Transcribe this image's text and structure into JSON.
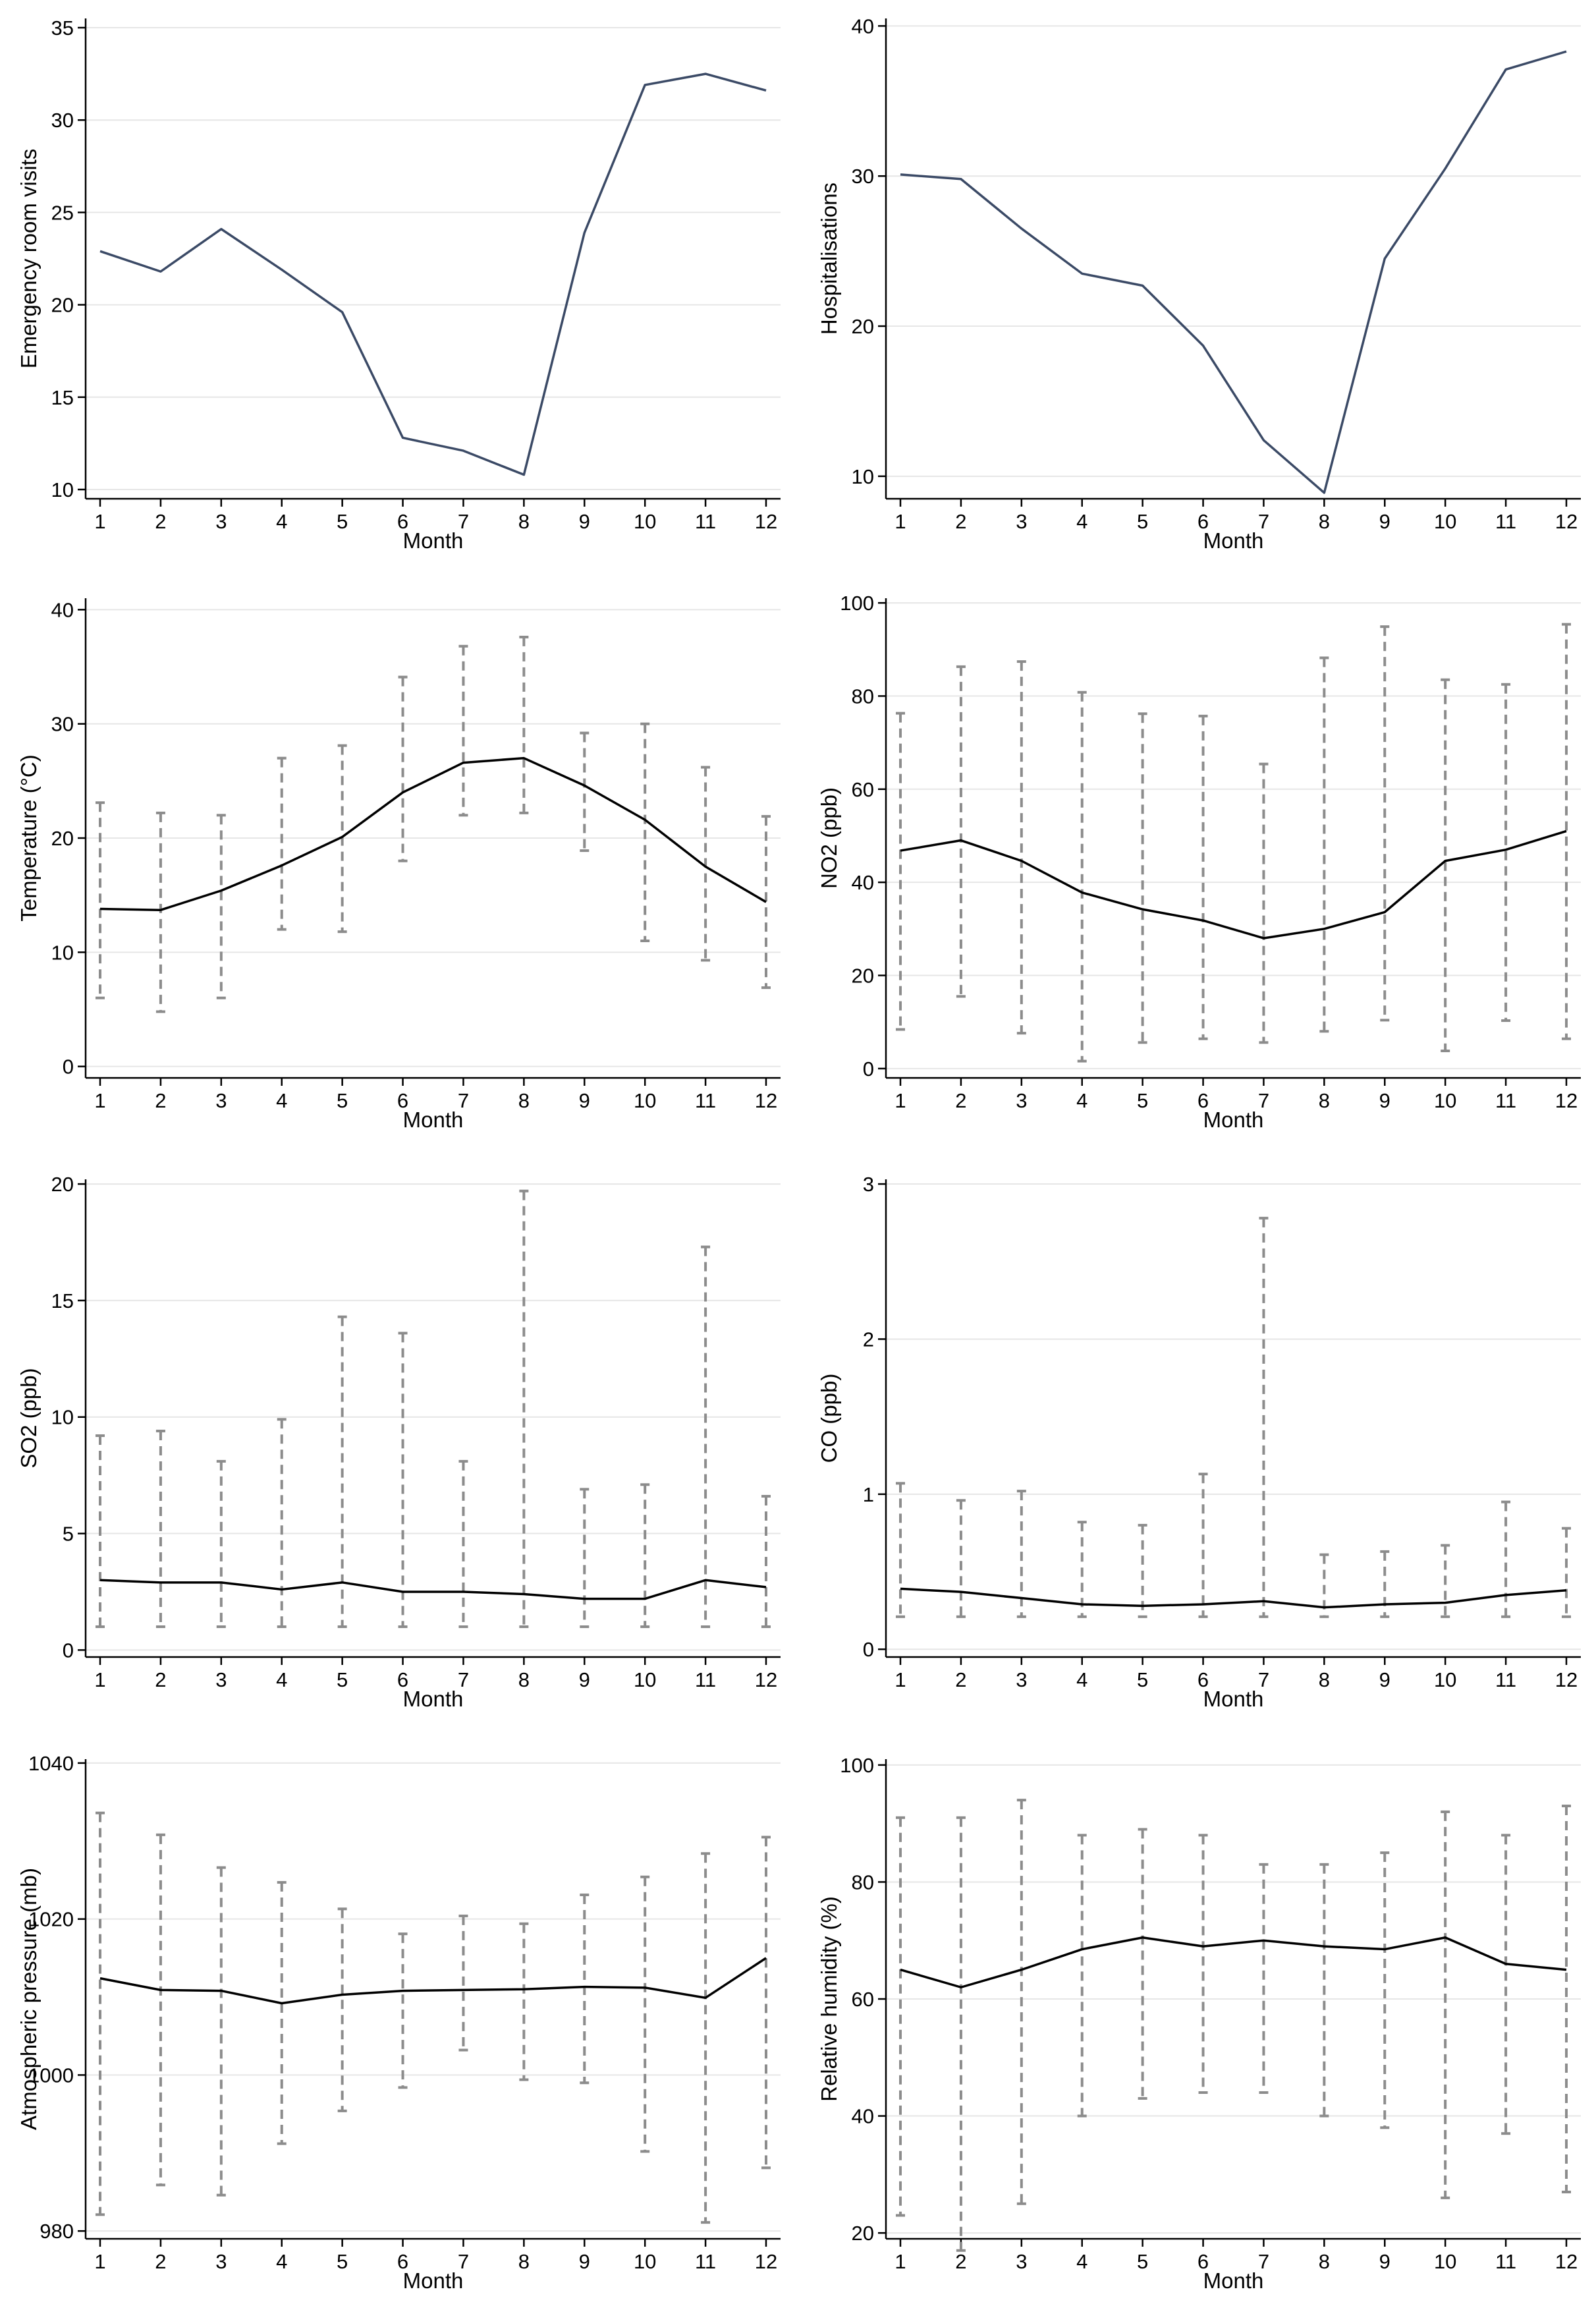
{
  "colors": {
    "visits_line": "#3b4a66",
    "mean_line": "#000000",
    "error_bar": "#8c8c8c",
    "grid": "#e6e6e6"
  },
  "chart_data": [
    {
      "id": "er-visits",
      "type": "line",
      "xlabel": "Month",
      "ylabel": "Emergency room visits",
      "x": [
        1,
        2,
        3,
        4,
        5,
        6,
        7,
        8,
        9,
        10,
        11,
        12
      ],
      "yticks": [
        10,
        15,
        20,
        25,
        30,
        35
      ],
      "ylim": [
        9.5,
        35.5
      ],
      "series": [
        {
          "values": [
            22.9,
            21.8,
            24.1,
            21.9,
            19.6,
            12.8,
            12.1,
            10.8,
            23.9,
            31.9,
            32.5,
            31.6
          ]
        }
      ],
      "grid": true
    },
    {
      "id": "hospitalisations",
      "type": "line",
      "xlabel": "Month",
      "ylabel": "Hospitalisations",
      "x": [
        1,
        2,
        3,
        4,
        5,
        6,
        7,
        8,
        9,
        10,
        11,
        12
      ],
      "yticks": [
        10,
        20,
        30,
        40
      ],
      "ylim": [
        8.5,
        40.5
      ],
      "series": [
        {
          "values": [
            30.1,
            29.8,
            26.5,
            23.5,
            22.7,
            18.7,
            12.4,
            8.9,
            24.5,
            30.5,
            37.1,
            38.3
          ]
        }
      ],
      "grid": true
    },
    {
      "id": "temperature",
      "type": "line",
      "xlabel": "Month",
      "ylabel": "Temperature (°C)",
      "x": [
        1,
        2,
        3,
        4,
        5,
        6,
        7,
        8,
        9,
        10,
        11,
        12
      ],
      "yticks": [
        0,
        10,
        20,
        30,
        40
      ],
      "ylim": [
        -1,
        41
      ],
      "series": [
        {
          "values": [
            13.8,
            13.7,
            15.4,
            17.6,
            20.1,
            24.0,
            26.6,
            27.0,
            24.6,
            21.6,
            17.5,
            14.4
          ],
          "lower": [
            6.0,
            4.8,
            6.0,
            12.0,
            11.8,
            18.0,
            22.0,
            22.2,
            18.9,
            11.0,
            9.3,
            6.9
          ],
          "upper": [
            23.1,
            22.2,
            22.0,
            27.0,
            28.1,
            34.1,
            36.8,
            37.6,
            29.2,
            30.0,
            26.2,
            21.9
          ]
        }
      ],
      "grid": true
    },
    {
      "id": "no2",
      "type": "line",
      "xlabel": "Month",
      "ylabel": "NO2 (ppb)",
      "x": [
        1,
        2,
        3,
        4,
        5,
        6,
        7,
        8,
        9,
        10,
        11,
        12
      ],
      "yticks": [
        0,
        20,
        40,
        60,
        80,
        100
      ],
      "ylim": [
        -2,
        101
      ],
      "series": [
        {
          "values": [
            46.8,
            49.0,
            44.6,
            37.8,
            34.2,
            31.8,
            28.0,
            30.0,
            33.6,
            44.6,
            47.0,
            51.0
          ],
          "lower": [
            8.4,
            15.5,
            7.6,
            1.6,
            5.6,
            6.4,
            5.6,
            8.0,
            10.4,
            3.8,
            10.3,
            6.4
          ],
          "upper": [
            76.3,
            86.3,
            87.4,
            80.8,
            76.2,
            75.7,
            65.4,
            88.2,
            94.9,
            83.5,
            82.5,
            95.4
          ]
        }
      ],
      "grid": true
    },
    {
      "id": "so2",
      "type": "line",
      "xlabel": "Month",
      "ylabel": "SO2 (ppb)",
      "x": [
        1,
        2,
        3,
        4,
        5,
        6,
        7,
        8,
        9,
        10,
        11,
        12
      ],
      "yticks": [
        0,
        5,
        10,
        15,
        20
      ],
      "ylim": [
        -0.3,
        20.2
      ],
      "series": [
        {
          "values": [
            3.0,
            2.9,
            2.9,
            2.6,
            2.9,
            2.5,
            2.5,
            2.4,
            2.2,
            2.2,
            3.0,
            2.7
          ],
          "lower": [
            1.0,
            1.0,
            1.0,
            1.0,
            1.0,
            1.0,
            1.0,
            1.0,
            1.0,
            1.0,
            1.0,
            1.0
          ],
          "upper": [
            9.2,
            9.4,
            8.1,
            9.9,
            14.3,
            13.6,
            8.1,
            19.7,
            6.9,
            7.1,
            17.3,
            6.6
          ]
        }
      ],
      "grid": true
    },
    {
      "id": "co",
      "type": "line",
      "xlabel": "Month",
      "ylabel": "CO (ppb)",
      "x": [
        1,
        2,
        3,
        4,
        5,
        6,
        7,
        8,
        9,
        10,
        11,
        12
      ],
      "yticks": [
        0,
        1,
        2,
        3
      ],
      "ylim": [
        -0.05,
        3.03
      ],
      "series": [
        {
          "values": [
            0.39,
            0.37,
            0.33,
            0.29,
            0.28,
            0.29,
            0.31,
            0.27,
            0.29,
            0.3,
            0.35,
            0.38
          ],
          "lower": [
            0.21,
            0.21,
            0.21,
            0.21,
            0.21,
            0.21,
            0.21,
            0.21,
            0.21,
            0.21,
            0.21,
            0.21
          ],
          "upper": [
            1.07,
            0.96,
            1.02,
            0.82,
            0.8,
            1.13,
            2.78,
            0.61,
            0.63,
            0.67,
            0.95,
            0.78
          ]
        }
      ],
      "grid": true
    },
    {
      "id": "atm-pressure",
      "type": "line",
      "xlabel": "Month",
      "ylabel": "Atmospheric pressure (mb)",
      "x": [
        1,
        2,
        3,
        4,
        5,
        6,
        7,
        8,
        9,
        10,
        11,
        12
      ],
      "yticks": [
        980,
        1000,
        1020,
        1040
      ],
      "ylim": [
        979,
        1040.5
      ],
      "series": [
        {
          "values": [
            1012.4,
            1010.9,
            1010.8,
            1009.2,
            1010.3,
            1010.8,
            1010.9,
            1011.0,
            1011.3,
            1011.2,
            1009.9,
            1015.0
          ],
          "lower": [
            982.1,
            985.9,
            984.6,
            991.2,
            995.4,
            998.4,
            1003.2,
            999.4,
            999.0,
            990.2,
            981.1,
            988.1
          ],
          "upper": [
            1033.6,
            1030.8,
            1026.6,
            1024.7,
            1021.3,
            1018.1,
            1020.4,
            1019.4,
            1023.1,
            1025.4,
            1028.4,
            1030.5
          ]
        }
      ],
      "grid": true
    },
    {
      "id": "rel-humidity",
      "type": "line",
      "xlabel": "Month",
      "ylabel": "Relative humidity (%)",
      "x": [
        1,
        2,
        3,
        4,
        5,
        6,
        7,
        8,
        9,
        10,
        11,
        12
      ],
      "yticks": [
        20,
        40,
        60,
        80,
        100
      ],
      "ylim": [
        19,
        101
      ],
      "series": [
        {
          "values": [
            65.0,
            62.0,
            65.0,
            68.5,
            70.5,
            69.0,
            70.0,
            69.0,
            68.5,
            70.5,
            66.0,
            65.0
          ],
          "lower": [
            23.0,
            17.0,
            25.0,
            40.0,
            43.0,
            44.0,
            44.0,
            40.0,
            38.0,
            26.0,
            37.0,
            27.0
          ],
          "upper": [
            91.0,
            91.0,
            94.0,
            88.0,
            89.0,
            88.0,
            83.0,
            83.0,
            85.0,
            92.0,
            88.0,
            93.0
          ]
        }
      ],
      "grid": true
    }
  ]
}
